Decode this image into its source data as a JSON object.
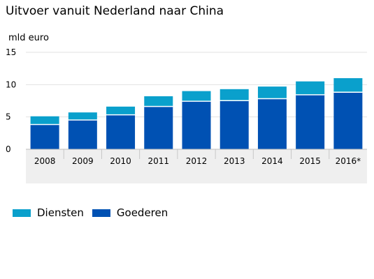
{
  "title": "Uitvoer vanuit Nederland naar China",
  "colors": {
    "diensten": "#0aa0cc",
    "goederen": "#0051b3",
    "axis_band": "#efefef",
    "grid": "#e2e2e2"
  },
  "chart_data": {
    "type": "bar",
    "stacked": true,
    "title": "Uitvoer vanuit Nederland naar China",
    "ylabel": "mld euro",
    "xlabel": "",
    "ylim": [
      0,
      15
    ],
    "yticks": [
      "0",
      "5",
      "10",
      "15"
    ],
    "categories": [
      "2008",
      "2009",
      "2010",
      "2011",
      "2012",
      "2013",
      "2014",
      "2015",
      "2016*"
    ],
    "series": [
      {
        "name": "Goederen",
        "values": [
          3.8,
          4.5,
          5.3,
          6.6,
          7.4,
          7.5,
          7.8,
          8.4,
          8.8
        ]
      },
      {
        "name": "Diensten",
        "values": [
          1.3,
          1.2,
          1.3,
          1.6,
          1.6,
          1.8,
          1.9,
          2.1,
          2.2
        ]
      }
    ],
    "grid": true,
    "legend_position": "bottom-left"
  },
  "legend": [
    {
      "label": "Diensten",
      "icon": "square-swatch"
    },
    {
      "label": "Goederen",
      "icon": "square-swatch"
    }
  ]
}
